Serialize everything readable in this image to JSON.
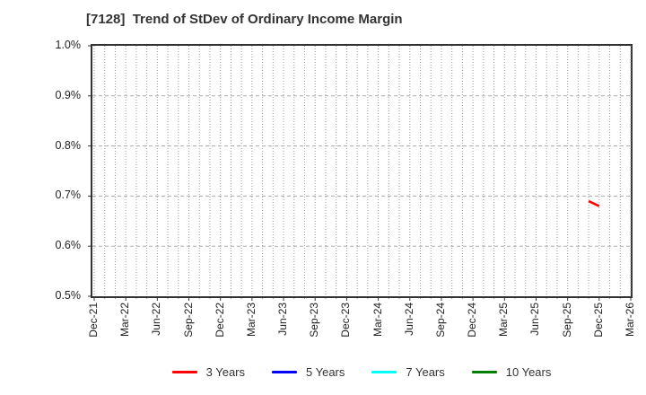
{
  "chart_data": {
    "type": "line",
    "title": "[7128]  Trend of StDev of Ordinary Income Margin",
    "y_axis": {
      "unit": "%",
      "min": 0.5,
      "max": 1.0,
      "tick_step": 0.1,
      "tick_labels": [
        "1.0%",
        "0.9%",
        "0.8%",
        "0.7%",
        "0.6%",
        "0.5%"
      ]
    },
    "x_axis": {
      "start_month": "Dec-21",
      "end_month": "Mar-26",
      "months_total": 52,
      "label_every_months": 3,
      "tick_labels": [
        "Dec-21",
        "Mar-22",
        "Jun-22",
        "Sep-22",
        "Dec-22",
        "Mar-23",
        "Jun-23",
        "Sep-23",
        "Dec-23",
        "Mar-24",
        "Jun-24",
        "Sep-24",
        "Dec-24",
        "Mar-25",
        "Jun-25",
        "Sep-25",
        "Dec-25",
        "Mar-26"
      ]
    },
    "grid": {
      "vertical": "dotted, monthly",
      "horizontal": "dashed, every 0.1%"
    },
    "legend_position": "bottom",
    "series": [
      {
        "name": "3 Years",
        "color": "#ff0000",
        "points": [
          {
            "x": "Nov-25",
            "month_index": 47,
            "value_pct": 0.69
          },
          {
            "x": "Dec-25",
            "month_index": 48,
            "value_pct": 0.68
          }
        ]
      },
      {
        "name": "5 Years",
        "color": "#0000ff",
        "points": []
      },
      {
        "name": "7 Years",
        "color": "#00ffff",
        "points": []
      },
      {
        "name": "10 Years",
        "color": "#008000",
        "points": []
      }
    ]
  }
}
